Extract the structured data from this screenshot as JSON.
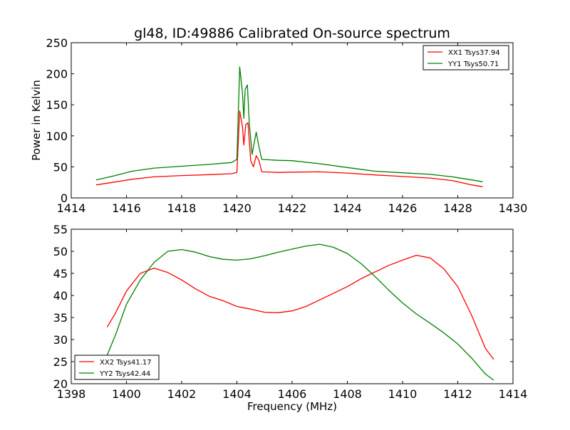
{
  "chart_data": [
    {
      "type": "line",
      "title": "gl48, ID:49886 Calibrated On-source spectrum",
      "xlabel": "",
      "ylabel": "Power in Kelvin",
      "xlim": [
        1414,
        1430
      ],
      "ylim": [
        0,
        250
      ],
      "xticks": [
        1414,
        1416,
        1418,
        1420,
        1422,
        1424,
        1426,
        1428,
        1430
      ],
      "yticks": [
        0,
        50,
        100,
        150,
        200,
        250
      ],
      "grid": false,
      "legend_position": "top-right",
      "series": [
        {
          "name": "XX1 Tsys37.94",
          "color": "#ff0000",
          "points": [
            [
              1414.9,
              21
            ],
            [
              1415.5,
              25
            ],
            [
              1416.2,
              30
            ],
            [
              1417,
              34
            ],
            [
              1418,
              36
            ],
            [
              1419,
              37.5
            ],
            [
              1419.8,
              39
            ],
            [
              1420.0,
              41
            ],
            [
              1420.1,
              140
            ],
            [
              1420.2,
              115
            ],
            [
              1420.25,
              85
            ],
            [
              1420.32,
              118
            ],
            [
              1420.4,
              121
            ],
            [
              1420.5,
              60
            ],
            [
              1420.6,
              50
            ],
            [
              1420.7,
              68
            ],
            [
              1420.8,
              60
            ],
            [
              1420.9,
              42
            ],
            [
              1421.5,
              41
            ],
            [
              1422,
              41.5
            ],
            [
              1423,
              42
            ],
            [
              1424,
              40
            ],
            [
              1425,
              37
            ],
            [
              1426,
              34.5
            ],
            [
              1427,
              32
            ],
            [
              1427.8,
              28
            ],
            [
              1428.5,
              21
            ],
            [
              1428.9,
              18
            ]
          ]
        },
        {
          "name": "YY1 Tsys50.71",
          "color": "#008000",
          "points": [
            [
              1414.9,
              29
            ],
            [
              1415.5,
              35
            ],
            [
              1416.2,
              43
            ],
            [
              1417,
              48
            ],
            [
              1418,
              51
            ],
            [
              1419,
              54
            ],
            [
              1419.8,
              57
            ],
            [
              1420.0,
              62
            ],
            [
              1420.1,
              211
            ],
            [
              1420.2,
              170
            ],
            [
              1420.25,
              128
            ],
            [
              1420.3,
              175
            ],
            [
              1420.38,
              182
            ],
            [
              1420.45,
              120
            ],
            [
              1420.55,
              70
            ],
            [
              1420.7,
              106
            ],
            [
              1420.8,
              82
            ],
            [
              1420.9,
              62
            ],
            [
              1421.5,
              60.5
            ],
            [
              1422,
              60
            ],
            [
              1423,
              55
            ],
            [
              1424,
              49
            ],
            [
              1425,
              43
            ],
            [
              1426,
              40.5
            ],
            [
              1427,
              38
            ],
            [
              1427.8,
              34
            ],
            [
              1428.5,
              29
            ],
            [
              1428.9,
              26
            ]
          ]
        }
      ]
    },
    {
      "type": "line",
      "title": "",
      "xlabel": "Frequency (MHz)",
      "ylabel": "",
      "xlim": [
        1398,
        1414
      ],
      "ylim": [
        20,
        55
      ],
      "xticks": [
        1398,
        1400,
        1402,
        1404,
        1406,
        1408,
        1410,
        1412,
        1414
      ],
      "yticks": [
        20,
        25,
        30,
        35,
        40,
        45,
        50,
        55
      ],
      "grid": false,
      "legend_position": "bottom-left",
      "series": [
        {
          "name": "XX2 Tsys41.17",
          "color": "#ff0000",
          "points": [
            [
              1399.3,
              32.8
            ],
            [
              1399.6,
              36
            ],
            [
              1400,
              41
            ],
            [
              1400.5,
              45
            ],
            [
              1401,
              46.2
            ],
            [
              1401.5,
              45.2
            ],
            [
              1402,
              43.5
            ],
            [
              1402.5,
              41.5
            ],
            [
              1403,
              39.8
            ],
            [
              1403.5,
              38.8
            ],
            [
              1404,
              37.5
            ],
            [
              1404.5,
              36.9
            ],
            [
              1405,
              36.2
            ],
            [
              1405.5,
              36.1
            ],
            [
              1406,
              36.5
            ],
            [
              1406.5,
              37.5
            ],
            [
              1407,
              39
            ],
            [
              1407.5,
              40.5
            ],
            [
              1408,
              42
            ],
            [
              1408.5,
              43.8
            ],
            [
              1409,
              45.3
            ],
            [
              1409.5,
              46.8
            ],
            [
              1410,
              48
            ],
            [
              1410.5,
              49.1
            ],
            [
              1411,
              48.5
            ],
            [
              1411.5,
              46
            ],
            [
              1412,
              42
            ],
            [
              1412.5,
              35.5
            ],
            [
              1413,
              28
            ],
            [
              1413.3,
              25.5
            ]
          ]
        },
        {
          "name": "YY2 Tsys42.44",
          "color": "#008000",
          "points": [
            [
              1399.3,
              26.5
            ],
            [
              1399.6,
              31
            ],
            [
              1400,
              38
            ],
            [
              1400.5,
              43.5
            ],
            [
              1401,
              47.5
            ],
            [
              1401.5,
              50
            ],
            [
              1402,
              50.4
            ],
            [
              1402.5,
              49.8
            ],
            [
              1403,
              48.8
            ],
            [
              1403.5,
              48.2
            ],
            [
              1404,
              48
            ],
            [
              1404.5,
              48.3
            ],
            [
              1405,
              49
            ],
            [
              1405.5,
              49.8
            ],
            [
              1406,
              50.5
            ],
            [
              1406.5,
              51.2
            ],
            [
              1407,
              51.6
            ],
            [
              1407.5,
              50.9
            ],
            [
              1408,
              49.5
            ],
            [
              1408.5,
              47.2
            ],
            [
              1409,
              44.3
            ],
            [
              1409.5,
              41.2
            ],
            [
              1410,
              38.3
            ],
            [
              1410.5,
              35.8
            ],
            [
              1411,
              33.7
            ],
            [
              1411.5,
              31.5
            ],
            [
              1412,
              29
            ],
            [
              1412.5,
              25.8
            ],
            [
              1413,
              22.2
            ],
            [
              1413.3,
              20.8
            ]
          ]
        }
      ]
    }
  ]
}
